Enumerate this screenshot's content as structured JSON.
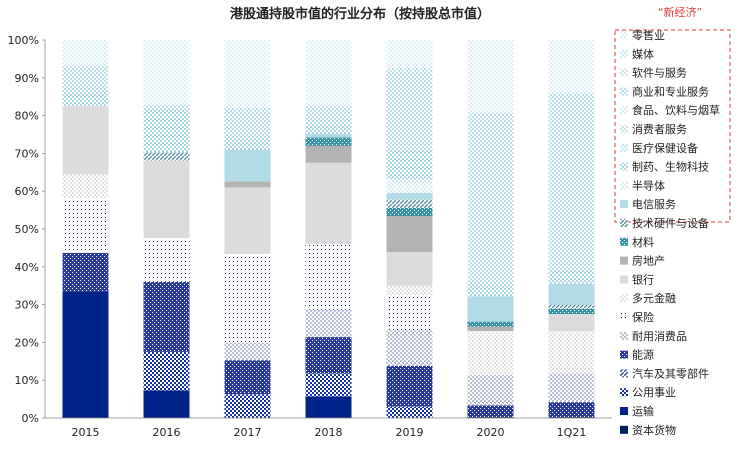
{
  "chart_data": {
    "type": "stacked-bar-100",
    "title": "港股通持股市值的行业分布（按持股总市值）",
    "annotation": "“新经济”",
    "categories": [
      "2015",
      "2016",
      "2017",
      "2018",
      "2019",
      "2020",
      "1Q21"
    ],
    "y_ticks": [
      "0%",
      "10%",
      "20%",
      "30%",
      "40%",
      "50%",
      "60%",
      "70%",
      "80%",
      "90%",
      "100%"
    ],
    "ylim": [
      0,
      100
    ],
    "series": [
      {
        "name": "资本货物",
        "color": "#00205b",
        "pattern": "solid",
        "values": [
          0,
          0,
          0,
          0,
          0,
          0,
          0
        ]
      },
      {
        "name": "运输",
        "color": "#00238a",
        "pattern": "solid",
        "values": [
          33.5,
          7.3,
          0.0,
          5.7,
          0.0,
          0.0,
          0.0
        ]
      },
      {
        "name": "公用事业",
        "color": "#17329a",
        "pattern": "dots",
        "values": [
          0.0,
          10.2,
          6.3,
          6.1,
          3.0,
          0.0,
          0.0
        ]
      },
      {
        "name": "汽车及其零部件",
        "color": "#3b4aa6",
        "pattern": "diag",
        "values": [
          0.0,
          0.0,
          0.0,
          0.0,
          0.0,
          0.0,
          0.0
        ]
      },
      {
        "name": "能源",
        "color": "#2a3a9a",
        "pattern": "check",
        "values": [
          10.2,
          18.5,
          9.0,
          9.6,
          10.8,
          3.3,
          4.2
        ]
      },
      {
        "name": "耐用消费品",
        "color": "#b9bedc",
        "pattern": "dots",
        "values": [
          0.0,
          0.0,
          4.6,
          7.3,
          9.4,
          8.1,
          7.6
        ]
      },
      {
        "name": "保险",
        "color": "#c9cde4",
        "pattern": "sparse",
        "values": [
          14.4,
          11.6,
          23.5,
          17.3,
          9.3,
          0.0,
          0.0
        ]
      },
      {
        "name": "多元金融",
        "color": "#e3e3e3",
        "pattern": "dots",
        "values": [
          6.4,
          0.0,
          0.0,
          0.0,
          2.5,
          11.6,
          11.2
        ]
      },
      {
        "name": "银行",
        "color": "#dcdcdc",
        "pattern": "solid",
        "values": [
          18.0,
          20.5,
          17.6,
          21.5,
          8.9,
          0.0,
          4.5
        ]
      },
      {
        "name": "房地产",
        "color": "#b3b3b3",
        "pattern": "solid",
        "values": [
          0.0,
          0.0,
          1.6,
          4.5,
          9.5,
          1.2,
          0.0
        ]
      },
      {
        "name": "材料",
        "color": "#3a96a6",
        "pattern": "check",
        "values": [
          0.0,
          0.0,
          0.0,
          2.2,
          2.2,
          1.3,
          1.4
        ]
      },
      {
        "name": "技术硬件与设备",
        "color": "#5b93a8",
        "pattern": "diag",
        "values": [
          0.0,
          2.2,
          0.0,
          0.0,
          2.2,
          0.0,
          1.1
        ]
      },
      {
        "name": "电信服务",
        "color": "#b1dbe7",
        "pattern": "solid",
        "values": [
          0.0,
          0.0,
          8.3,
          1.0,
          1.7,
          6.7,
          5.5
        ]
      },
      {
        "name": "半导体",
        "color": "#d6eef4",
        "pattern": "dots",
        "values": [
          0.0,
          0.0,
          0.0,
          0.0,
          3.7,
          0.0,
          0.0
        ]
      },
      {
        "name": "制药、生物科技",
        "color": "#a9d7e4",
        "pattern": "dots",
        "values": [
          4.0,
          11.5,
          3.5,
          3.0,
          8.0,
          4.0,
          4.0
        ]
      },
      {
        "name": "医疗保健设备",
        "color": "#bfe2ec",
        "pattern": "diag",
        "values": [
          0.0,
          0.0,
          0.0,
          0.0,
          0.0,
          0.0,
          0.0
        ]
      },
      {
        "name": "消费者服务",
        "color": "#c7e6ef",
        "pattern": "dots",
        "values": [
          0.0,
          0.0,
          0.0,
          0.0,
          0.0,
          0.0,
          0.0
        ]
      },
      {
        "name": "食品、饮料与烟草",
        "color": "#d9eef4",
        "pattern": "dots",
        "values": [
          0.0,
          0.0,
          0.0,
          0.0,
          0.0,
          0.0,
          0.0
        ]
      },
      {
        "name": "商业和专业服务",
        "color": "#b8dfea",
        "pattern": "dots",
        "values": [
          6.5,
          1.0,
          7.7,
          4.2,
          21.3,
          44.4,
          46.4
        ]
      },
      {
        "name": "软件与服务",
        "color": "#cfeaf2",
        "pattern": "dots",
        "values": [
          0.0,
          0.0,
          0.0,
          0.0,
          0.0,
          0.0,
          0.0
        ]
      },
      {
        "name": "媒体",
        "color": "#cde9f1",
        "pattern": "dots",
        "values": [
          0.0,
          0.0,
          0.0,
          0.0,
          0.0,
          0.0,
          0.0
        ]
      },
      {
        "name": "零售业",
        "color": "#dbeff5",
        "pattern": "dots",
        "values": [
          7.0,
          17.2,
          17.9,
          17.6,
          7.5,
          19.4,
          14.1
        ]
      }
    ],
    "legend_position": "right",
    "grid": false,
    "highlight_box_legend": [
      "零售业",
      "媒体",
      "软件与服务",
      "商业和专业服务",
      "食品、饮料与烟草",
      "消费者服务",
      "医疗保健设备",
      "制药、生物科技",
      "半导体",
      "电信服务",
      "技术硬件与设备"
    ]
  }
}
